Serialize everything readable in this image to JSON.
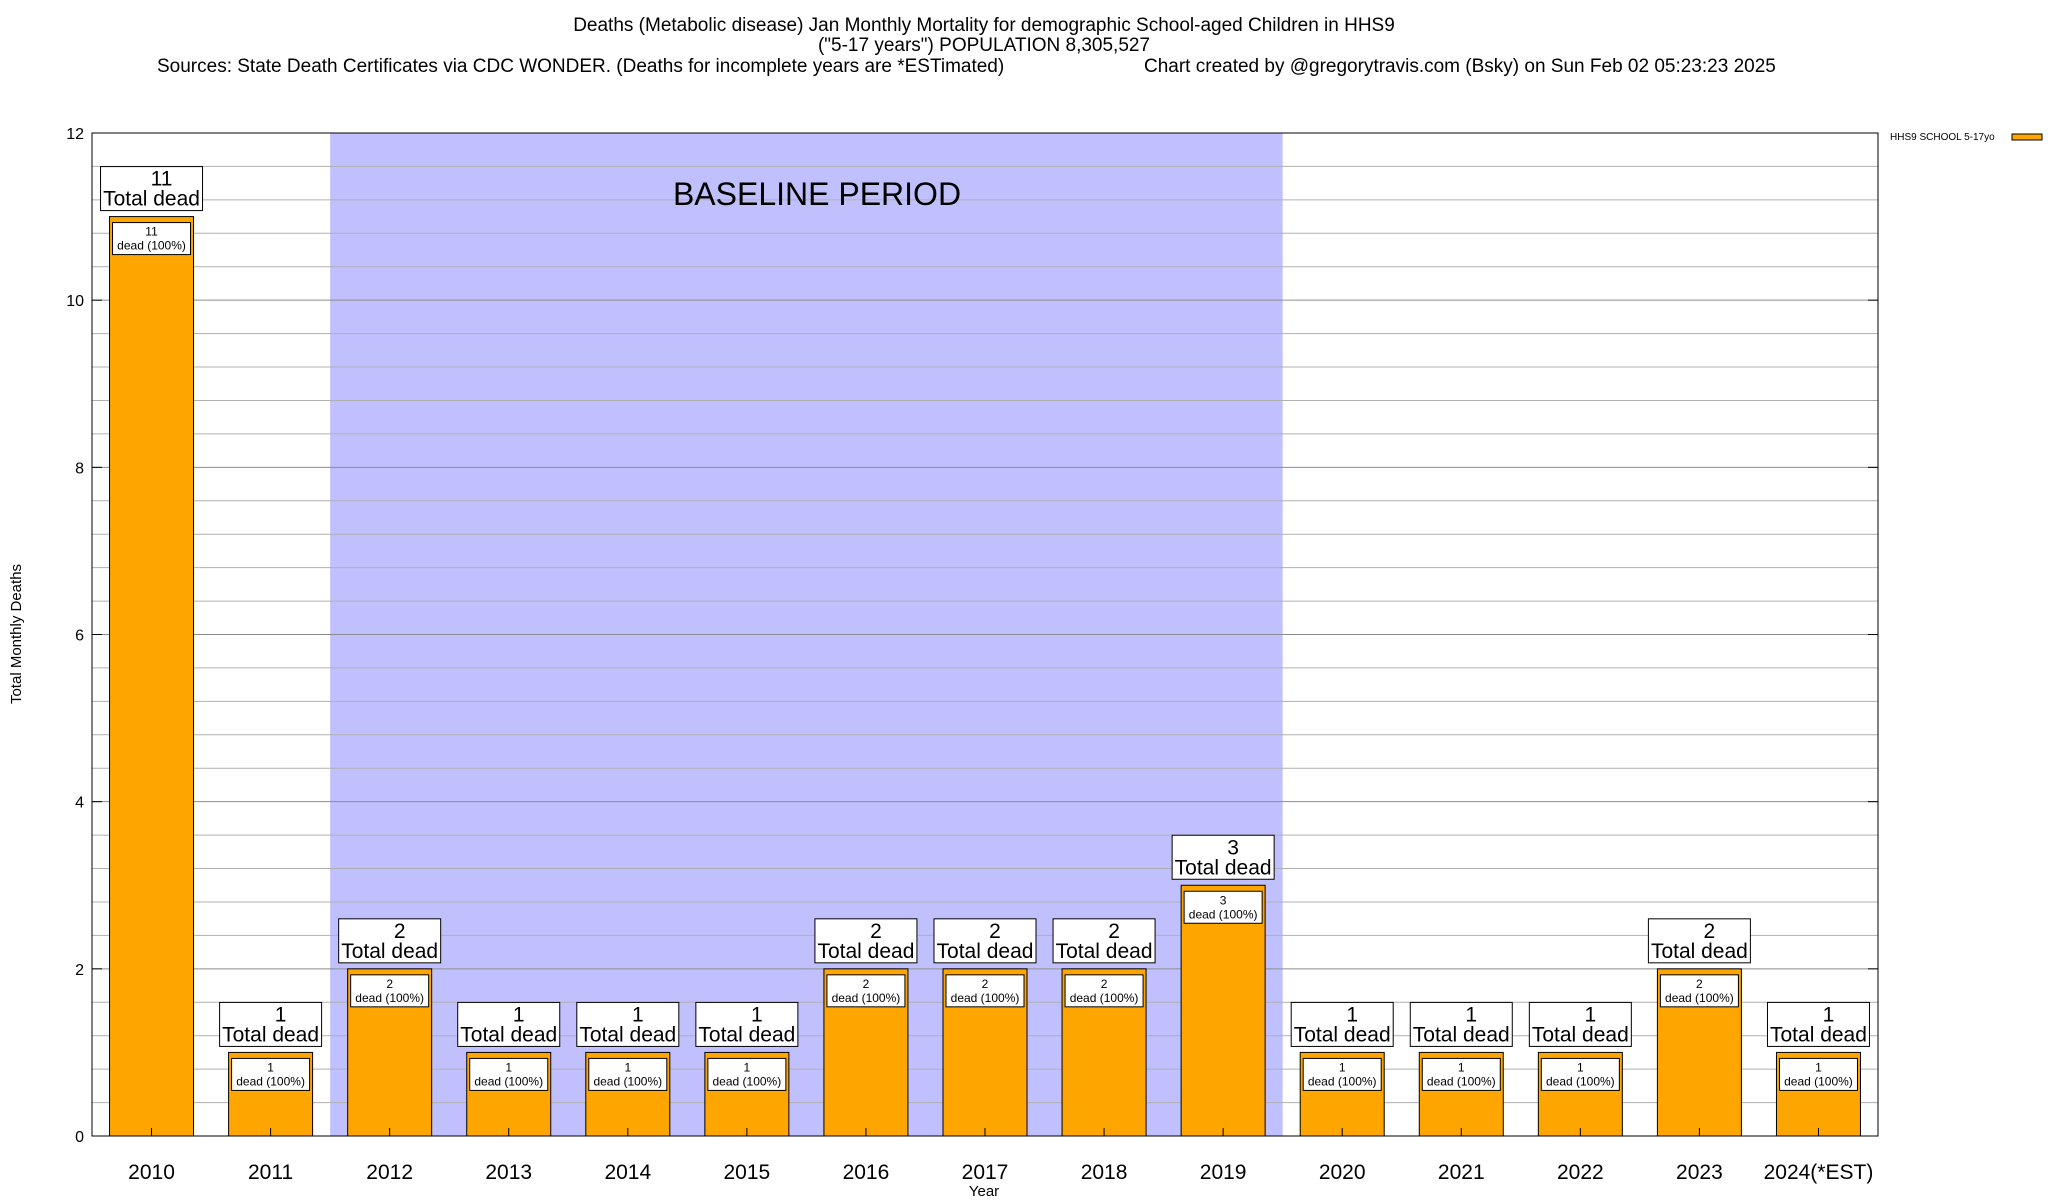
{
  "title": {
    "line1": "Deaths (Metabolic disease) Jan Monthly Mortality for demographic School-aged Children in HHS9",
    "line2": "(\"5-17 years\") POPULATION 8,305,527",
    "line3_left": "Sources: State Death Certificates via CDC WONDER. (Deaths for incomplete years are *ESTimated)",
    "line3_right": "Chart created by @gregorytravis.com (Bsky) on Sun Feb 02 05:23:23 2025"
  },
  "baseline_label": "BASELINE PERIOD",
  "chart_data": {
    "type": "bar",
    "categories": [
      "2010",
      "2011",
      "2012",
      "2013",
      "2014",
      "2015",
      "2016",
      "2017",
      "2018",
      "2019",
      "2020",
      "2021",
      "2022",
      "2023",
      "2024(*EST)"
    ],
    "series": [
      {
        "name": "HHS9 SCHOOL 5-17yo",
        "values": [
          11,
          1,
          2,
          1,
          1,
          1,
          2,
          2,
          2,
          3,
          1,
          1,
          1,
          2,
          1
        ]
      }
    ],
    "total_labels": [
      "11",
      "1",
      "2",
      "1",
      "1",
      "1",
      "2",
      "2",
      "2",
      "3",
      "1",
      "1",
      "1",
      "2",
      "1"
    ],
    "total_suffix": "Total dead",
    "inner_labels": [
      "11",
      "1",
      "2",
      "1",
      "1",
      "1",
      "2",
      "2",
      "2",
      "3",
      "1",
      "1",
      "1",
      "2",
      "1"
    ],
    "inner_suffix": "dead (100%)",
    "baseline_period": [
      "2012",
      "2019"
    ],
    "xlabel": "Year",
    "ylabel": "Total Monthly Deaths",
    "ylim": [
      0,
      12
    ],
    "y_ticks": [
      "0",
      "2",
      "4",
      "6",
      "8",
      "10",
      "12"
    ],
    "grid": true,
    "legend_position": "top-right",
    "colors": {
      "bar": "#FFA500",
      "baseline": "#C0C0FF",
      "grid": "#B0B0B0"
    }
  }
}
